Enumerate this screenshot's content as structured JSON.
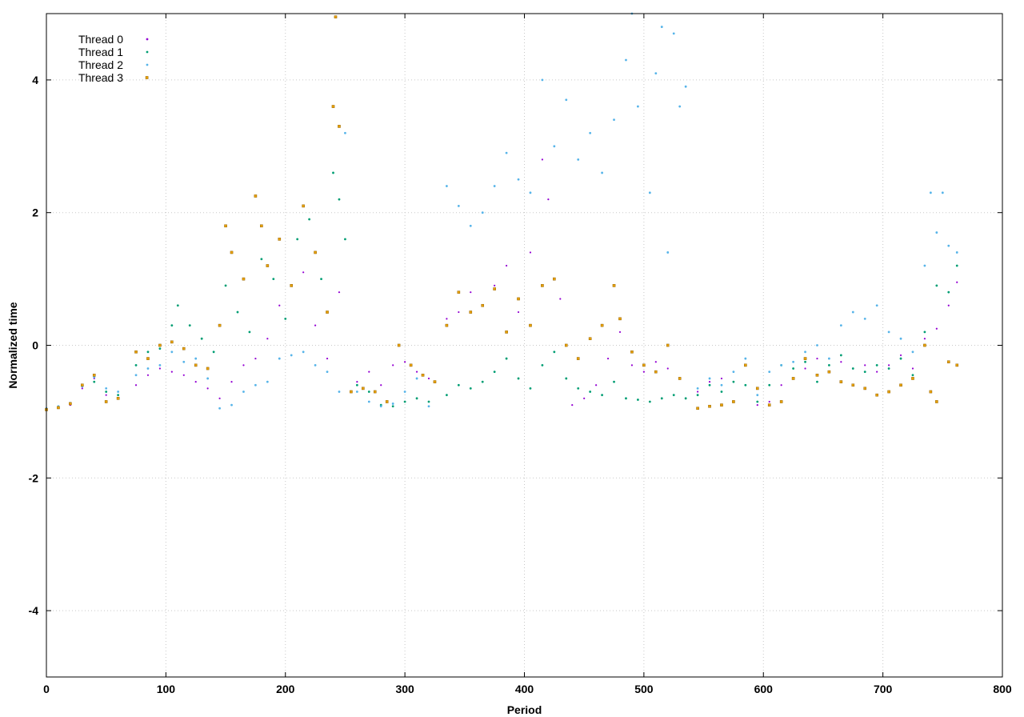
{
  "chart_data": {
    "type": "scatter",
    "title": "",
    "xlabel": "Period",
    "ylabel": "Normalized time",
    "xlim": [
      0,
      800
    ],
    "ylim": [
      -5,
      5
    ],
    "xticks": [
      0,
      100,
      200,
      300,
      400,
      500,
      600,
      700,
      800
    ],
    "yticks": [
      -4,
      -2,
      0,
      2,
      4
    ],
    "grid": true,
    "legend_position": "top-left",
    "series": [
      {
        "name": "Thread 0",
        "color": "#9400d3",
        "marker": "dot",
        "points": [
          [
            0,
            -0.97
          ],
          [
            10,
            -0.94
          ],
          [
            20,
            -0.9
          ],
          [
            30,
            -0.65
          ],
          [
            40,
            -0.5
          ],
          [
            50,
            -0.75
          ],
          [
            60,
            -0.8
          ],
          [
            75,
            -0.6
          ],
          [
            85,
            -0.45
          ],
          [
            95,
            -0.35
          ],
          [
            105,
            -0.4
          ],
          [
            115,
            -0.45
          ],
          [
            125,
            -0.55
          ],
          [
            135,
            -0.65
          ],
          [
            145,
            -0.8
          ],
          [
            155,
            -0.55
          ],
          [
            165,
            -0.3
          ],
          [
            175,
            -0.2
          ],
          [
            185,
            0.1
          ],
          [
            195,
            0.6
          ],
          [
            205,
            0.9
          ],
          [
            215,
            1.1
          ],
          [
            225,
            0.3
          ],
          [
            235,
            -0.2
          ],
          [
            245,
            0.8
          ],
          [
            260,
            -0.55
          ],
          [
            270,
            -0.4
          ],
          [
            280,
            -0.6
          ],
          [
            290,
            -0.3
          ],
          [
            300,
            -0.25
          ],
          [
            310,
            -0.4
          ],
          [
            320,
            -0.5
          ],
          [
            335,
            0.4
          ],
          [
            345,
            0.5
          ],
          [
            355,
            0.8
          ],
          [
            365,
            0.6
          ],
          [
            375,
            0.9
          ],
          [
            385,
            1.2
          ],
          [
            395,
            0.5
          ],
          [
            405,
            1.4
          ],
          [
            415,
            2.8
          ],
          [
            420,
            2.2
          ],
          [
            430,
            0.7
          ],
          [
            440,
            -0.9
          ],
          [
            450,
            -0.8
          ],
          [
            460,
            -0.6
          ],
          [
            470,
            -0.2
          ],
          [
            480,
            0.2
          ],
          [
            490,
            -0.3
          ],
          [
            500,
            -0.4
          ],
          [
            510,
            -0.25
          ],
          [
            520,
            -0.35
          ],
          [
            530,
            -0.5
          ],
          [
            545,
            -0.7
          ],
          [
            555,
            -0.55
          ],
          [
            565,
            -0.5
          ],
          [
            575,
            -0.4
          ],
          [
            585,
            -0.3
          ],
          [
            595,
            -0.9
          ],
          [
            605,
            -0.85
          ],
          [
            615,
            -0.6
          ],
          [
            625,
            -0.5
          ],
          [
            635,
            -0.35
          ],
          [
            645,
            -0.2
          ],
          [
            655,
            -0.3
          ],
          [
            665,
            -0.25
          ],
          [
            675,
            -0.35
          ],
          [
            685,
            -0.3
          ],
          [
            695,
            -0.4
          ],
          [
            705,
            -0.3
          ],
          [
            715,
            -0.15
          ],
          [
            725,
            -0.35
          ],
          [
            735,
            0.1
          ],
          [
            745,
            0.25
          ],
          [
            755,
            0.6
          ],
          [
            762,
            0.95
          ]
        ]
      },
      {
        "name": "Thread 1",
        "color": "#009e73",
        "marker": "dot",
        "points": [
          [
            0,
            -0.96
          ],
          [
            10,
            -0.93
          ],
          [
            20,
            -0.88
          ],
          [
            30,
            -0.6
          ],
          [
            40,
            -0.55
          ],
          [
            50,
            -0.7
          ],
          [
            60,
            -0.75
          ],
          [
            75,
            -0.3
          ],
          [
            85,
            -0.1
          ],
          [
            95,
            -0.05
          ],
          [
            105,
            0.3
          ],
          [
            110,
            0.6
          ],
          [
            120,
            0.3
          ],
          [
            130,
            0.1
          ],
          [
            140,
            -0.1
          ],
          [
            150,
            0.9
          ],
          [
            160,
            0.5
          ],
          [
            170,
            0.2
          ],
          [
            180,
            1.3
          ],
          [
            190,
            1.0
          ],
          [
            200,
            0.4
          ],
          [
            210,
            1.6
          ],
          [
            220,
            1.9
          ],
          [
            230,
            1.0
          ],
          [
            240,
            2.6
          ],
          [
            245,
            2.2
          ],
          [
            250,
            1.6
          ],
          [
            260,
            -0.6
          ],
          [
            270,
            -0.7
          ],
          [
            280,
            -0.9
          ],
          [
            290,
            -0.92
          ],
          [
            300,
            -0.85
          ],
          [
            310,
            -0.8
          ],
          [
            320,
            -0.85
          ],
          [
            335,
            -0.75
          ],
          [
            345,
            -0.6
          ],
          [
            355,
            -0.65
          ],
          [
            365,
            -0.55
          ],
          [
            375,
            -0.4
          ],
          [
            385,
            -0.2
          ],
          [
            395,
            -0.5
          ],
          [
            405,
            -0.65
          ],
          [
            415,
            -0.3
          ],
          [
            425,
            -0.1
          ],
          [
            435,
            -0.5
          ],
          [
            445,
            -0.65
          ],
          [
            455,
            -0.7
          ],
          [
            465,
            -0.75
          ],
          [
            475,
            -0.55
          ],
          [
            485,
            -0.8
          ],
          [
            495,
            -0.82
          ],
          [
            505,
            -0.85
          ],
          [
            515,
            -0.8
          ],
          [
            525,
            -0.75
          ],
          [
            535,
            -0.8
          ],
          [
            545,
            -0.75
          ],
          [
            555,
            -0.6
          ],
          [
            565,
            -0.7
          ],
          [
            575,
            -0.55
          ],
          [
            585,
            -0.6
          ],
          [
            595,
            -0.85
          ],
          [
            605,
            -0.6
          ],
          [
            615,
            -0.3
          ],
          [
            625,
            -0.35
          ],
          [
            635,
            -0.25
          ],
          [
            645,
            -0.55
          ],
          [
            655,
            -0.3
          ],
          [
            665,
            -0.15
          ],
          [
            675,
            -0.35
          ],
          [
            685,
            -0.4
          ],
          [
            695,
            -0.3
          ],
          [
            705,
            -0.35
          ],
          [
            715,
            -0.2
          ],
          [
            725,
            -0.45
          ],
          [
            735,
            0.2
          ],
          [
            745,
            0.9
          ],
          [
            755,
            0.8
          ],
          [
            762,
            1.2
          ]
        ]
      },
      {
        "name": "Thread 2",
        "color": "#56b4e9",
        "marker": "dot",
        "points": [
          [
            0,
            -0.95
          ],
          [
            10,
            -0.92
          ],
          [
            20,
            -0.87
          ],
          [
            30,
            -0.62
          ],
          [
            40,
            -0.48
          ],
          [
            50,
            -0.65
          ],
          [
            60,
            -0.7
          ],
          [
            75,
            -0.45
          ],
          [
            85,
            -0.35
          ],
          [
            95,
            -0.3
          ],
          [
            105,
            -0.1
          ],
          [
            115,
            -0.25
          ],
          [
            125,
            -0.2
          ],
          [
            135,
            -0.5
          ],
          [
            145,
            -0.95
          ],
          [
            155,
            -0.9
          ],
          [
            165,
            -0.7
          ],
          [
            175,
            -0.6
          ],
          [
            185,
            -0.55
          ],
          [
            195,
            -0.2
          ],
          [
            205,
            -0.15
          ],
          [
            215,
            -0.1
          ],
          [
            225,
            -0.3
          ],
          [
            235,
            -0.4
          ],
          [
            245,
            -0.7
          ],
          [
            250,
            3.2
          ],
          [
            260,
            -0.7
          ],
          [
            270,
            -0.85
          ],
          [
            280,
            -0.92
          ],
          [
            290,
            -0.88
          ],
          [
            300,
            -0.7
          ],
          [
            310,
            -0.5
          ],
          [
            320,
            -0.92
          ],
          [
            335,
            2.4
          ],
          [
            345,
            2.1
          ],
          [
            355,
            1.8
          ],
          [
            365,
            2.0
          ],
          [
            375,
            2.4
          ],
          [
            385,
            2.9
          ],
          [
            395,
            2.5
          ],
          [
            405,
            2.3
          ],
          [
            415,
            4.0
          ],
          [
            425,
            3.0
          ],
          [
            435,
            3.7
          ],
          [
            445,
            2.8
          ],
          [
            455,
            3.2
          ],
          [
            465,
            2.6
          ],
          [
            475,
            3.4
          ],
          [
            485,
            4.3
          ],
          [
            490,
            5.0
          ],
          [
            495,
            3.6
          ],
          [
            505,
            2.3
          ],
          [
            510,
            4.1
          ],
          [
            515,
            4.8
          ],
          [
            520,
            1.4
          ],
          [
            525,
            4.7
          ],
          [
            530,
            3.6
          ],
          [
            535,
            3.9
          ],
          [
            545,
            -0.65
          ],
          [
            555,
            -0.5
          ],
          [
            565,
            -0.6
          ],
          [
            575,
            -0.4
          ],
          [
            585,
            -0.2
          ],
          [
            595,
            -0.75
          ],
          [
            605,
            -0.4
          ],
          [
            615,
            -0.3
          ],
          [
            625,
            -0.25
          ],
          [
            635,
            -0.1
          ],
          [
            645,
            0.0
          ],
          [
            655,
            -0.2
          ],
          [
            665,
            0.3
          ],
          [
            675,
            0.5
          ],
          [
            685,
            0.4
          ],
          [
            695,
            0.6
          ],
          [
            705,
            0.2
          ],
          [
            715,
            0.1
          ],
          [
            725,
            -0.1
          ],
          [
            735,
            1.2
          ],
          [
            740,
            2.3
          ],
          [
            745,
            1.7
          ],
          [
            750,
            2.3
          ],
          [
            755,
            1.5
          ],
          [
            762,
            1.4
          ]
        ]
      },
      {
        "name": "Thread 3",
        "color": "#e69f00",
        "marker": "square",
        "points": [
          [
            0,
            -0.97
          ],
          [
            10,
            -0.94
          ],
          [
            20,
            -0.88
          ],
          [
            30,
            -0.6
          ],
          [
            40,
            -0.45
          ],
          [
            50,
            -0.85
          ],
          [
            60,
            -0.8
          ],
          [
            75,
            -0.1
          ],
          [
            85,
            -0.2
          ],
          [
            95,
            0.0
          ],
          [
            105,
            0.05
          ],
          [
            115,
            -0.05
          ],
          [
            125,
            -0.3
          ],
          [
            135,
            -0.35
          ],
          [
            145,
            0.3
          ],
          [
            150,
            1.8
          ],
          [
            155,
            1.4
          ],
          [
            165,
            1.0
          ],
          [
            175,
            2.25
          ],
          [
            180,
            1.8
          ],
          [
            185,
            1.2
          ],
          [
            195,
            1.6
          ],
          [
            205,
            0.9
          ],
          [
            215,
            2.1
          ],
          [
            225,
            1.4
          ],
          [
            235,
            0.5
          ],
          [
            240,
            3.6
          ],
          [
            242,
            4.95
          ],
          [
            245,
            3.3
          ],
          [
            255,
            -0.7
          ],
          [
            265,
            -0.65
          ],
          [
            275,
            -0.7
          ],
          [
            285,
            -0.85
          ],
          [
            295,
            0.0
          ],
          [
            305,
            -0.3
          ],
          [
            315,
            -0.45
          ],
          [
            325,
            -0.55
          ],
          [
            335,
            0.3
          ],
          [
            345,
            0.8
          ],
          [
            355,
            0.5
          ],
          [
            365,
            0.6
          ],
          [
            375,
            0.85
          ],
          [
            385,
            0.2
          ],
          [
            395,
            0.7
          ],
          [
            405,
            0.3
          ],
          [
            415,
            0.9
          ],
          [
            425,
            1.0
          ],
          [
            435,
            0.0
          ],
          [
            445,
            -0.2
          ],
          [
            455,
            0.1
          ],
          [
            465,
            0.3
          ],
          [
            475,
            0.9
          ],
          [
            480,
            0.4
          ],
          [
            490,
            -0.1
          ],
          [
            500,
            -0.3
          ],
          [
            510,
            -0.4
          ],
          [
            520,
            0.0
          ],
          [
            530,
            -0.5
          ],
          [
            545,
            -0.95
          ],
          [
            555,
            -0.92
          ],
          [
            565,
            -0.9
          ],
          [
            575,
            -0.85
          ],
          [
            585,
            -0.3
          ],
          [
            595,
            -0.65
          ],
          [
            605,
            -0.9
          ],
          [
            615,
            -0.85
          ],
          [
            625,
            -0.5
          ],
          [
            635,
            -0.2
          ],
          [
            645,
            -0.45
          ],
          [
            655,
            -0.4
          ],
          [
            665,
            -0.55
          ],
          [
            675,
            -0.6
          ],
          [
            685,
            -0.65
          ],
          [
            695,
            -0.75
          ],
          [
            705,
            -0.7
          ],
          [
            715,
            -0.6
          ],
          [
            725,
            -0.5
          ],
          [
            735,
            0.0
          ],
          [
            740,
            -0.7
          ],
          [
            745,
            -0.85
          ],
          [
            755,
            -0.25
          ],
          [
            762,
            -0.3
          ]
        ]
      }
    ]
  }
}
